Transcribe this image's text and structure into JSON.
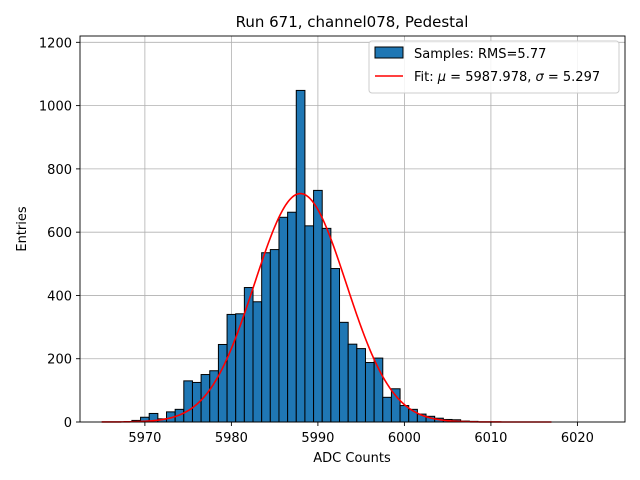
{
  "chart_data": {
    "type": "bar",
    "title": "Run 671, channel078, Pedestal",
    "xlabel": "ADC Counts",
    "ylabel": "Entries",
    "xlim": [
      5962.5,
      6025.5
    ],
    "ylim": [
      0,
      1220
    ],
    "xticks": [
      5970,
      5980,
      5990,
      6000,
      6010,
      6020
    ],
    "yticks": [
      0,
      200,
      400,
      600,
      800,
      1000,
      1200
    ],
    "grid": true,
    "legend_position": "top-right",
    "colors": {
      "bar_fill": "#1f77b4",
      "bar_edge": "#000000",
      "fit_line": "#ff0000"
    },
    "histogram": {
      "name": "Samples: RMS=5.77",
      "bin_width": 1,
      "bins": [
        {
          "x": 5969,
          "y": 5
        },
        {
          "x": 5970,
          "y": 15
        },
        {
          "x": 5971,
          "y": 27
        },
        {
          "x": 5972,
          "y": 10
        },
        {
          "x": 5973,
          "y": 32
        },
        {
          "x": 5974,
          "y": 40
        },
        {
          "x": 5975,
          "y": 130
        },
        {
          "x": 5976,
          "y": 125
        },
        {
          "x": 5977,
          "y": 150
        },
        {
          "x": 5978,
          "y": 162
        },
        {
          "x": 5979,
          "y": 245
        },
        {
          "x": 5980,
          "y": 340
        },
        {
          "x": 5981,
          "y": 342
        },
        {
          "x": 5982,
          "y": 425
        },
        {
          "x": 5983,
          "y": 380
        },
        {
          "x": 5984,
          "y": 535
        },
        {
          "x": 5985,
          "y": 545
        },
        {
          "x": 5986,
          "y": 647
        },
        {
          "x": 5987,
          "y": 663
        },
        {
          "x": 5988,
          "y": 1048
        },
        {
          "x": 5989,
          "y": 620
        },
        {
          "x": 5990,
          "y": 732
        },
        {
          "x": 5991,
          "y": 612
        },
        {
          "x": 5992,
          "y": 485
        },
        {
          "x": 5993,
          "y": 315
        },
        {
          "x": 5994,
          "y": 246
        },
        {
          "x": 5995,
          "y": 232
        },
        {
          "x": 5996,
          "y": 188
        },
        {
          "x": 5997,
          "y": 202
        },
        {
          "x": 5998,
          "y": 78
        },
        {
          "x": 5999,
          "y": 105
        },
        {
          "x": 6000,
          "y": 52
        },
        {
          "x": 6001,
          "y": 40
        },
        {
          "x": 6002,
          "y": 25
        },
        {
          "x": 6003,
          "y": 18
        },
        {
          "x": 6004,
          "y": 12
        },
        {
          "x": 6005,
          "y": 8
        },
        {
          "x": 6006,
          "y": 7
        },
        {
          "x": 6007,
          "y": 3
        },
        {
          "x": 6008,
          "y": 2
        }
      ]
    },
    "fit": {
      "name_prefix": "Fit: ",
      "mu_symbol": "μ",
      "sigma_symbol": "σ",
      "mu_text": " = 5987.978, ",
      "sigma_text": " = 5.297",
      "mu": 5987.978,
      "sigma": 5.297,
      "amplitude": 722,
      "x_range": [
        5965,
        6017
      ]
    }
  }
}
